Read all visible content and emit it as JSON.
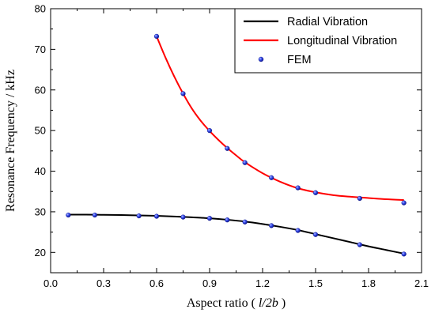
{
  "chart_data": {
    "type": "line",
    "xlabel": "Aspect ratio ( l/2b )",
    "xlabel_parts": {
      "prefix": "Aspect ratio ( ",
      "italic": "l/2b",
      "suffix": " )"
    },
    "ylabel": "Resonance Frequency / kHz",
    "xlim": [
      0.0,
      2.1
    ],
    "ylim": [
      15,
      80
    ],
    "xticks": [
      0.0,
      0.3,
      0.6,
      0.9,
      1.2,
      1.5,
      1.8,
      2.1
    ],
    "xtick_labels": [
      "0.0",
      "0.3",
      "0.6",
      "0.9",
      "1.2",
      "1.5",
      "1.8",
      "2.1"
    ],
    "yticks": [
      20,
      30,
      40,
      50,
      60,
      70,
      80
    ],
    "ytick_labels": [
      "20",
      "30",
      "40",
      "50",
      "60",
      "70",
      "80"
    ],
    "grid": false,
    "legend_position": "top-right",
    "series": [
      {
        "name": "Radial Vibration",
        "kind": "line",
        "color": "#000000",
        "x": [
          0.1,
          0.2,
          0.3,
          0.4,
          0.5,
          0.6,
          0.7,
          0.8,
          0.9,
          1.0,
          1.1,
          1.2,
          1.3,
          1.4,
          1.5,
          1.6,
          1.7,
          1.8,
          1.9,
          2.0
        ],
        "y": [
          29.3,
          29.3,
          29.25,
          29.2,
          29.1,
          29.0,
          28.85,
          28.65,
          28.4,
          28.05,
          27.6,
          27.0,
          26.3,
          25.5,
          24.5,
          23.5,
          22.5,
          21.5,
          20.6,
          19.7
        ]
      },
      {
        "name": "Longitudinal Vibration",
        "kind": "line",
        "color": "#ff0000",
        "x": [
          0.6,
          0.65,
          0.7,
          0.75,
          0.8,
          0.85,
          0.9,
          0.95,
          1.0,
          1.05,
          1.1,
          1.2,
          1.3,
          1.4,
          1.5,
          1.6,
          1.7,
          1.8,
          1.9,
          2.0
        ],
        "y": [
          73.2,
          68.0,
          63.3,
          59.1,
          55.4,
          52.4,
          49.9,
          47.7,
          45.7,
          43.9,
          42.2,
          39.5,
          37.4,
          35.8,
          34.8,
          34.1,
          33.7,
          33.4,
          33.1,
          32.9
        ]
      },
      {
        "name": "FEM",
        "kind": "scatter",
        "color": "#1a2ee8",
        "x": [
          0.1,
          0.25,
          0.5,
          0.6,
          0.75,
          0.9,
          1.0,
          1.1,
          1.25,
          1.4,
          1.5,
          1.75,
          2.0,
          0.6,
          0.75,
          0.9,
          1.0,
          1.1,
          1.25,
          1.4,
          1.5,
          1.75,
          2.0
        ],
        "y": [
          29.2,
          29.2,
          29.0,
          28.9,
          28.7,
          28.4,
          28.0,
          27.5,
          26.6,
          25.4,
          24.4,
          21.9,
          19.6,
          73.2,
          59.1,
          50.0,
          45.6,
          42.1,
          38.4,
          35.9,
          34.7,
          33.3,
          32.2
        ]
      }
    ]
  }
}
